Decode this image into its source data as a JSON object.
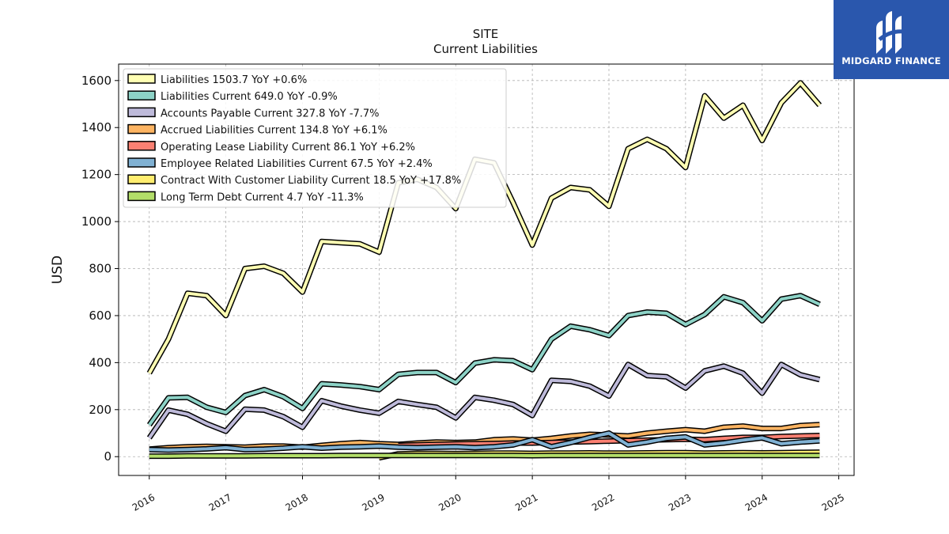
{
  "brand": {
    "name": "MIDGARD FINANCE",
    "logo_icon": "midgard-m-logo-icon",
    "background_color": "#2a57ad"
  },
  "chart_data": {
    "type": "line",
    "title": "SITE",
    "subtitle": "Current  Liabilities",
    "xlabel": "",
    "ylabel": "USD",
    "ylim": [
      -80,
      1670
    ],
    "xlim": [
      2015.6,
      2025.2
    ],
    "yticks": [
      0,
      200,
      400,
      600,
      800,
      1000,
      1200,
      1400,
      1600
    ],
    "xticks": [
      2016,
      2017,
      2018,
      2019,
      2020,
      2021,
      2022,
      2023,
      2024,
      2025
    ],
    "xtick_labels": [
      "2016",
      "2017",
      "2018",
      "2019",
      "2020",
      "2021",
      "2022",
      "2023",
      "2024",
      "2025"
    ],
    "grid": true,
    "legend_position": "upper-left",
    "x": [
      2016.0,
      2016.25,
      2016.5,
      2016.75,
      2017.0,
      2017.25,
      2017.5,
      2017.75,
      2018.0,
      2018.25,
      2018.5,
      2018.75,
      2019.0,
      2019.25,
      2019.5,
      2019.75,
      2020.0,
      2020.25,
      2020.5,
      2020.75,
      2021.0,
      2021.25,
      2021.5,
      2021.75,
      2022.0,
      2022.25,
      2022.5,
      2022.75,
      2023.0,
      2023.25,
      2023.5,
      2023.75,
      2024.0,
      2024.25,
      2024.5,
      2024.75
    ],
    "series": [
      {
        "name": "Liabilities",
        "legend": "Liabilities  1503.7 YoY +0.6%",
        "color": "#ffffb3",
        "values": [
          355,
          500,
          695,
          685,
          600,
          800,
          810,
          780,
          700,
          915,
          910,
          905,
          870,
          1165,
          1180,
          1145,
          1055,
          1265,
          1250,
          1080,
          900,
          1100,
          1145,
          1135,
          1065,
          1310,
          1350,
          1310,
          1230,
          1535,
          1440,
          1495,
          1345,
          1505,
          1590,
          1495
        ]
      },
      {
        "name": "Liabilities Current",
        "legend": "Liabilities Current  649.0 YoY -0.9%",
        "color": "#8dd3c7",
        "values": [
          135,
          250,
          252,
          210,
          188,
          260,
          285,
          255,
          205,
          310,
          305,
          298,
          285,
          350,
          358,
          358,
          315,
          398,
          412,
          408,
          370,
          500,
          555,
          540,
          515,
          600,
          615,
          610,
          562,
          605,
          680,
          655,
          578,
          670,
          685,
          648
        ]
      },
      {
        "name": "Accounts Payable Current",
        "legend": "Accounts Payable Current  327.8 YoY -7.7%",
        "color": "#bebada",
        "values": [
          80,
          198,
          180,
          140,
          108,
          202,
          198,
          170,
          125,
          238,
          215,
          198,
          185,
          235,
          222,
          210,
          165,
          252,
          240,
          222,
          175,
          325,
          320,
          300,
          258,
          392,
          345,
          340,
          292,
          365,
          385,
          355,
          270,
          392,
          348,
          328
        ]
      },
      {
        "name": "Accrued Liabilities Current",
        "legend": "Accrued Liabilities Current  134.8 YoY +6.1%",
        "color": "#fdb462",
        "values": [
          32,
          38,
          42,
          44,
          42,
          40,
          45,
          45,
          40,
          48,
          55,
          60,
          55,
          52,
          58,
          62,
          60,
          62,
          72,
          75,
          70,
          78,
          88,
          95,
          92,
          88,
          100,
          108,
          115,
          108,
          125,
          130,
          120,
          120,
          132,
          136
        ]
      },
      {
        "name": "Operating Lease Liability Current",
        "legend": "Operating Lease Liability Current  86.1 YoY +6.2%",
        "color": "#fb8072",
        "values": [
          null,
          null,
          null,
          null,
          null,
          null,
          null,
          null,
          null,
          null,
          null,
          null,
          null,
          48,
          50,
          52,
          54,
          55,
          56,
          58,
          58,
          60,
          62,
          64,
          66,
          68,
          70,
          72,
          74,
          72,
          78,
          82,
          82,
          86,
          88,
          90
        ]
      },
      {
        "name": "Employee Related Liabilities Current",
        "legend": "Employee Related Liabilities Current  67.5 YoY +2.4%",
        "color": "#80b1d3",
        "values": [
          30,
          28,
          30,
          33,
          38,
          30,
          32,
          36,
          42,
          36,
          40,
          42,
          45,
          40,
          38,
          40,
          42,
          38,
          42,
          50,
          72,
          42,
          60,
          82,
          100,
          50,
          62,
          78,
          84,
          50,
          58,
          70,
          80,
          55,
          62,
          67
        ]
      },
      {
        "name": "Contract With Customer Liability Current",
        "legend": "Contract With Customer Liability Current  18.5 YoY +17.8%",
        "color": "#ffed6f",
        "values": [
          null,
          null,
          null,
          null,
          null,
          null,
          null,
          null,
          null,
          null,
          null,
          null,
          -5,
          12,
          14,
          14,
          13,
          14,
          15,
          15,
          14,
          15,
          15,
          16,
          15,
          15,
          16,
          17,
          17,
          15,
          16,
          17,
          16,
          17,
          18,
          19
        ]
      },
      {
        "name": "Long Term Debt Current",
        "legend": "Long Term Debt Current  4.7 YoY -11.3%",
        "color": "#b3de69",
        "values": [
          2,
          2,
          3,
          3,
          3,
          3,
          4,
          4,
          4,
          4,
          5,
          5,
          5,
          5,
          5,
          5,
          5,
          5,
          5,
          5,
          4,
          5,
          5,
          5,
          5,
          5,
          5,
          5,
          5,
          5,
          5,
          5,
          5,
          5,
          5,
          5
        ]
      }
    ]
  }
}
